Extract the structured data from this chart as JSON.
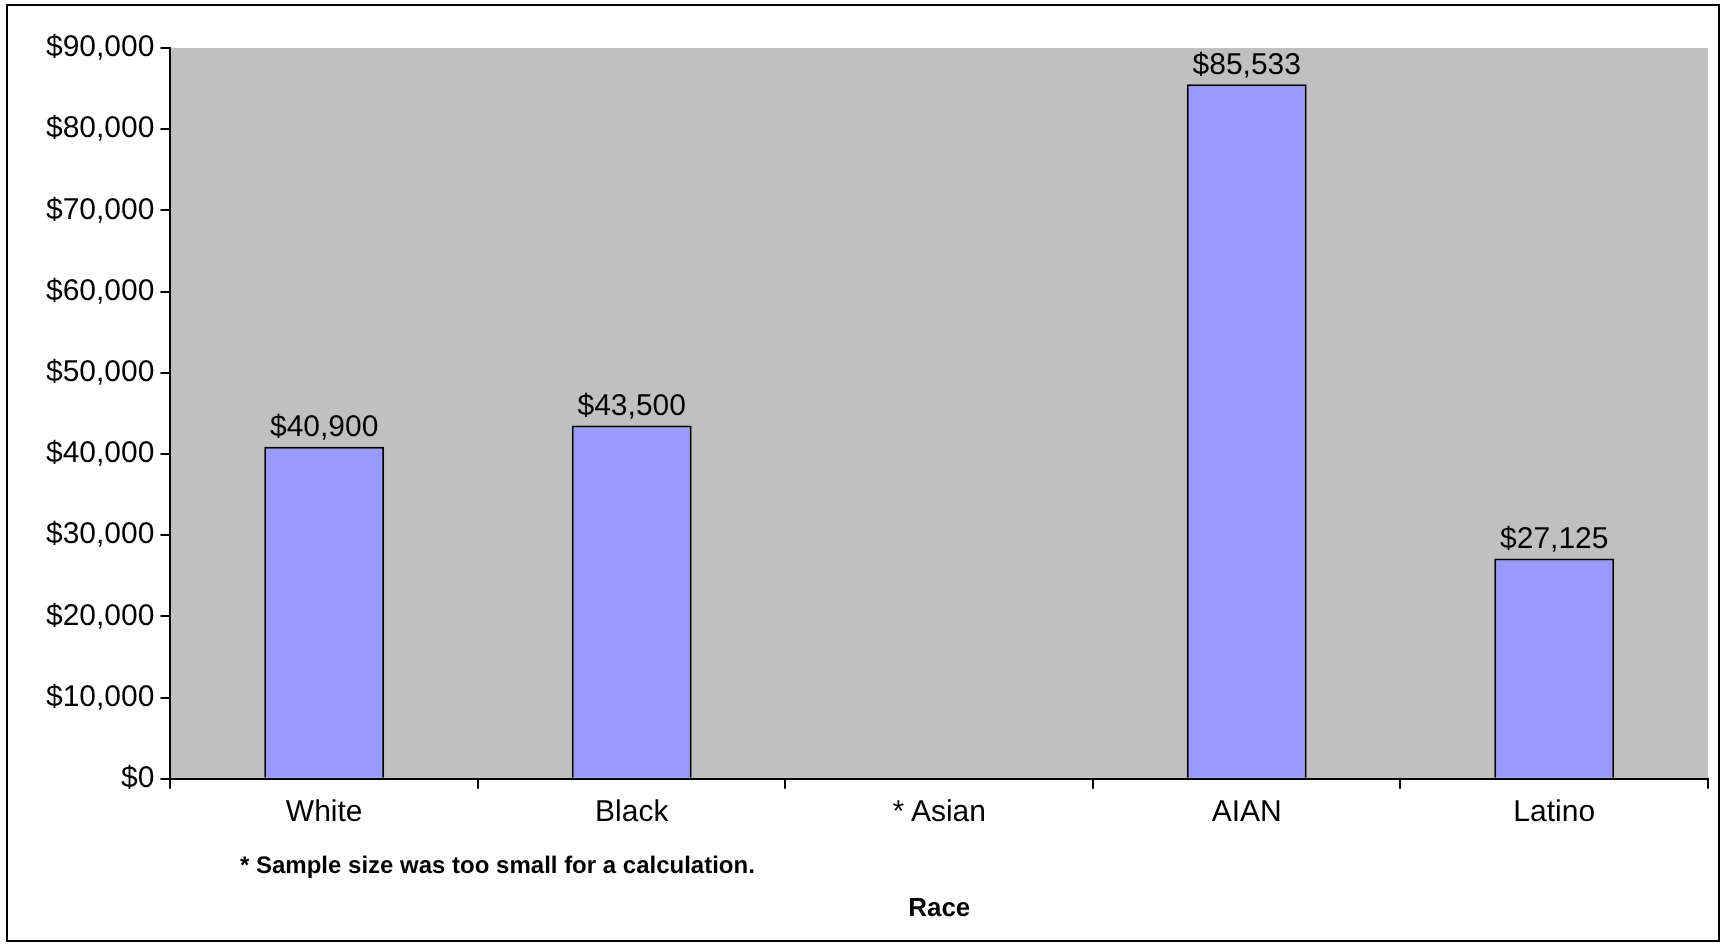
{
  "chart_data": {
    "type": "bar",
    "xlabel": "Race",
    "categories": [
      "White",
      "Black",
      "* Asian",
      "AIAN",
      "Latino"
    ],
    "values": [
      40900,
      43500,
      null,
      85533,
      27125
    ],
    "value_labels": [
      "$40,900",
      "$43,500",
      null,
      "$85,533",
      "$27,125"
    ],
    "color": "#9999ff",
    "ylim": [
      0,
      90000
    ],
    "yticks": [
      {
        "value": 0,
        "label": "$0"
      },
      {
        "value": 10000,
        "label": "$10,000"
      },
      {
        "value": 20000,
        "label": "$20,000"
      },
      {
        "value": 30000,
        "label": "$30,000"
      },
      {
        "value": 40000,
        "label": "$40,000"
      },
      {
        "value": 50000,
        "label": "$50,000"
      },
      {
        "value": 60000,
        "label": "$60,000"
      },
      {
        "value": 70000,
        "label": "$70,000"
      },
      {
        "value": 80000,
        "label": "$80,000"
      },
      {
        "value": 90000,
        "label": "$90,000"
      }
    ],
    "annotations": [
      "* Sample size was too small for a calculation."
    ],
    "grid": false,
    "legend": false
  }
}
